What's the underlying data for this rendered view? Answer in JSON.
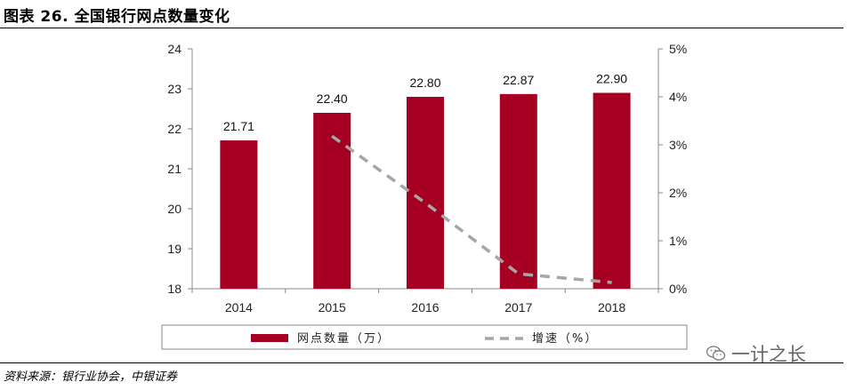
{
  "figure": {
    "title": "图表 26. 全国银行网点数量变化",
    "source": "资料来源：银行业协会，中银证券",
    "watermark": "一计之长"
  },
  "colors": {
    "bar": "#a50021",
    "line": "#a6a6a6"
  },
  "chart_data": {
    "type": "bar",
    "categories": [
      "2014",
      "2015",
      "2016",
      "2017",
      "2018"
    ],
    "series": [
      {
        "name": "网点数量（万）",
        "type": "bar",
        "axis": "left",
        "values": [
          21.71,
          22.4,
          22.8,
          22.87,
          22.9
        ],
        "labels": [
          "21.71",
          "22.40",
          "22.80",
          "22.87",
          "22.90"
        ]
      },
      {
        "name": "增速（%）",
        "type": "line",
        "style": "dashed",
        "axis": "right",
        "values": [
          null,
          3.18,
          1.79,
          0.31,
          0.13
        ]
      }
    ],
    "ylim": [
      18,
      24
    ],
    "y_ticks": [
      "18",
      "19",
      "20",
      "21",
      "22",
      "23",
      "24"
    ],
    "y2lim": [
      0,
      5
    ],
    "y2_ticks": [
      "0%",
      "1%",
      "2%",
      "3%",
      "4%",
      "5%"
    ],
    "grid": false,
    "legend_position": "bottom"
  }
}
